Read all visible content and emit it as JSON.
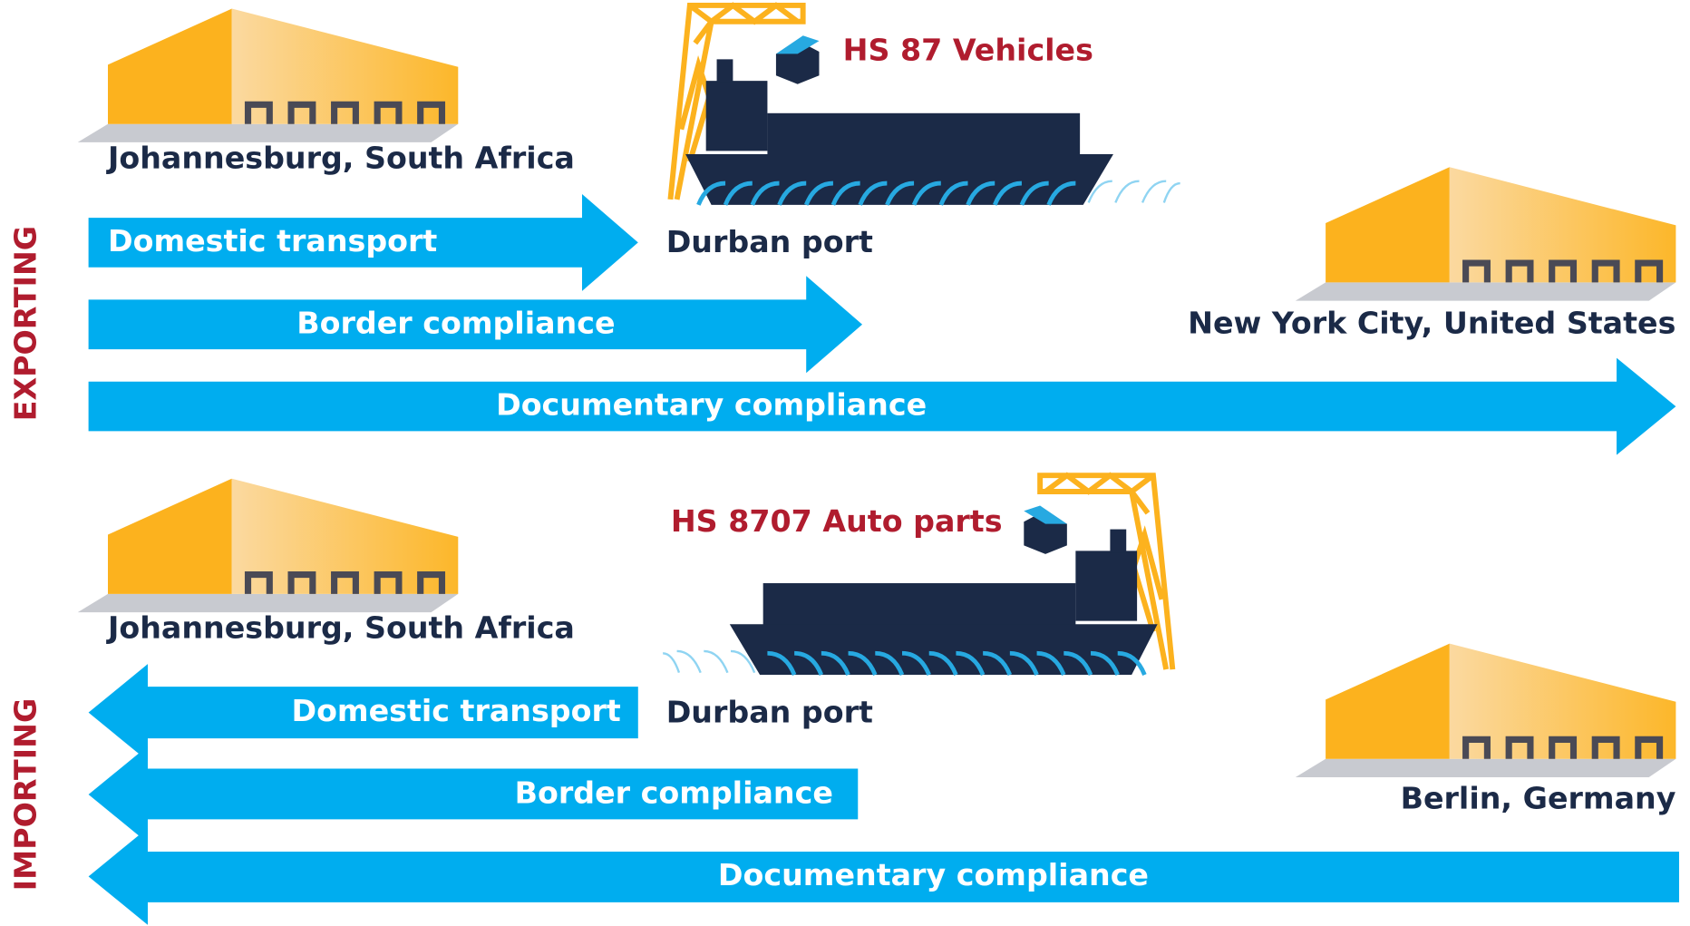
{
  "exporting": {
    "label": "EXPORTING",
    "product": "HS 87 Vehicles",
    "origin": "Johannesburg, South Africa",
    "port": "Durban port",
    "destination": "New York City, United States",
    "arrows": [
      "Domestic transport",
      "Border compliance",
      "Documentary compliance"
    ]
  },
  "importing": {
    "label": "IMPORTING",
    "product": "HS 8707 Auto parts",
    "origin": "Johannesburg, South Africa",
    "port": "Durban port",
    "destination": "Berlin, Germany",
    "arrows": [
      "Domestic transport",
      "Border compliance",
      "Documentary compliance"
    ]
  }
}
